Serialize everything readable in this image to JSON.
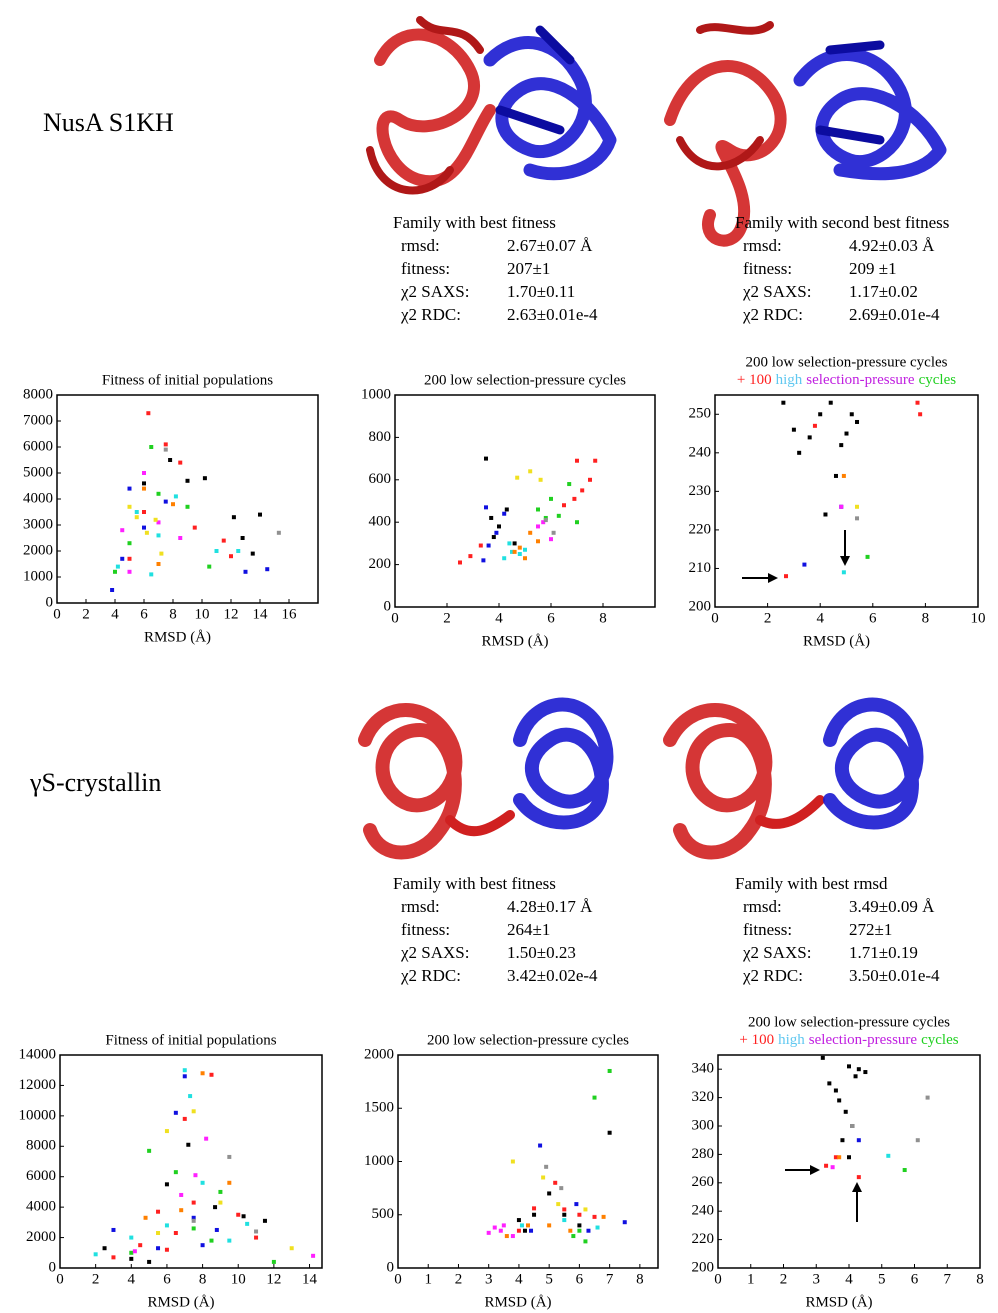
{
  "panels": [
    {
      "label": "NusA S1KH",
      "families": [
        {
          "title": "Family with best fitness",
          "rows": [
            [
              "rmsd:",
              "2.67±0.07 Å"
            ],
            [
              "fitness:",
              "207±1"
            ],
            [
              "χ2 SAXS:",
              "1.70±0.11"
            ],
            [
              "χ2 RDC:",
              "2.63±0.01e-4"
            ]
          ]
        },
        {
          "title": "Family with second best fitness",
          "rows": [
            [
              "rmsd:",
              "4.92±0.03 Å"
            ],
            [
              "fitness:",
              "209 ±1"
            ],
            [
              "χ2 SAXS:",
              "1.17±0.02"
            ],
            [
              "χ2 RDC:",
              "2.69±0.01e-4"
            ]
          ]
        }
      ]
    },
    {
      "label": "γS-crystallin",
      "families": [
        {
          "title": "Family with best fitness",
          "rows": [
            [
              "rmsd:",
              "4.28±0.17 Å"
            ],
            [
              "fitness:",
              "264±1"
            ],
            [
              "χ2 SAXS:",
              "1.50±0.23"
            ],
            [
              "χ2 RDC:",
              "3.42±0.02e-4"
            ]
          ]
        },
        {
          "title": "Family with best rmsd",
          "rows": [
            [
              "rmsd:",
              "3.49±0.09 Å"
            ],
            [
              "fitness:",
              "272±1"
            ],
            [
              "χ2 SAXS:",
              "1.71±0.19"
            ],
            [
              "χ2 RDC:",
              "3.50±0.01e-4"
            ]
          ]
        }
      ]
    }
  ],
  "chart_data": [
    {
      "type": "scatter",
      "title": "Fitness of initial populations",
      "xlabel": "RMSD (Å)",
      "xlim": [
        0,
        18
      ],
      "xticks": [
        0,
        2,
        4,
        6,
        8,
        10,
        12,
        14,
        16
      ],
      "ylim": [
        0,
        8000
      ],
      "yticks": [
        0,
        1000,
        2000,
        3000,
        4000,
        5000,
        6000,
        7000,
        8000
      ],
      "series": [
        {
          "color": "#ff2020",
          "x": [
            6.3,
            7.5,
            8.5,
            9.5,
            11.5,
            12,
            6,
            5
          ],
          "y": [
            7300,
            6100,
            5400,
            2900,
            2400,
            1800,
            3500,
            1700
          ]
        },
        {
          "color": "#20d020",
          "x": [
            6.5,
            7,
            9,
            10.5,
            5,
            4
          ],
          "y": [
            6000,
            4200,
            3700,
            1400,
            2300,
            1200
          ]
        },
        {
          "color": "#1010e0",
          "x": [
            3.8,
            5,
            6,
            7.5,
            13,
            14.5,
            4.5
          ],
          "y": [
            500,
            4400,
            2900,
            3900,
            1200,
            1300,
            1700
          ]
        },
        {
          "color": "#000000",
          "x": [
            6,
            7.8,
            9,
            10.2,
            12.2,
            12.8,
            14,
            13.5
          ],
          "y": [
            4600,
            5500,
            4700,
            4800,
            3300,
            2500,
            3400,
            1900
          ]
        },
        {
          "color": "#20e0e0",
          "x": [
            4.2,
            5.5,
            7,
            8.2,
            11,
            12.5,
            6.5
          ],
          "y": [
            1400,
            3500,
            2600,
            4100,
            2000,
            2000,
            1100
          ]
        },
        {
          "color": "#ff20ff",
          "x": [
            5,
            6,
            4.5,
            7,
            8.5
          ],
          "y": [
            1200,
            5000,
            2800,
            3100,
            2500
          ]
        },
        {
          "color": "#f0e020",
          "x": [
            5.5,
            6.2,
            6.8,
            7.2,
            5
          ],
          "y": [
            3300,
            2700,
            3200,
            1900,
            3700
          ]
        },
        {
          "color": "#ff8000",
          "x": [
            6,
            7,
            8
          ],
          "y": [
            4400,
            1500,
            3800
          ]
        },
        {
          "color": "#909090",
          "x": [
            7.5,
            15.3
          ],
          "y": [
            5900,
            2700
          ]
        }
      ]
    },
    {
      "type": "scatter",
      "title": "200 low selection-pressure cycles",
      "xlabel": "RMSD (Å)",
      "xlim": [
        0,
        10
      ],
      "xticks": [
        0,
        2,
        4,
        6,
        8
      ],
      "ylim": [
        0,
        1000
      ],
      "yticks": [
        0,
        200,
        400,
        600,
        800,
        1000
      ],
      "series": [
        {
          "color": "#ff2020",
          "x": [
            2.5,
            2.9,
            3.3,
            6.5,
            6.9,
            7.2,
            7.5,
            7,
            7.7
          ],
          "y": [
            210,
            240,
            290,
            480,
            510,
            550,
            600,
            690,
            690
          ]
        },
        {
          "color": "#000000",
          "x": [
            3.5,
            3.7,
            4,
            4.3,
            4.6,
            3.8
          ],
          "y": [
            700,
            420,
            380,
            460,
            300,
            330
          ]
        },
        {
          "color": "#1010e0",
          "x": [
            3.4,
            3.6,
            3.9,
            3.5,
            4.2
          ],
          "y": [
            220,
            290,
            350,
            470,
            440
          ]
        },
        {
          "color": "#20e0e0",
          "x": [
            4.2,
            4.5,
            4.8,
            5,
            4.4
          ],
          "y": [
            230,
            260,
            250,
            270,
            300
          ]
        },
        {
          "color": "#20d020",
          "x": [
            5.5,
            6,
            6.3,
            6.7,
            7,
            5.8
          ],
          "y": [
            460,
            510,
            430,
            580,
            400,
            420
          ]
        },
        {
          "color": "#ff8000",
          "x": [
            4.8,
            5.2,
            5.5,
            5,
            4.6
          ],
          "y": [
            280,
            350,
            310,
            230,
            260
          ]
        },
        {
          "color": "#f0e020",
          "x": [
            5.2,
            5.6,
            4.7
          ],
          "y": [
            640,
            600,
            610
          ]
        },
        {
          "color": "#ff20ff",
          "x": [
            5.5,
            5.7,
            6
          ],
          "y": [
            380,
            400,
            320
          ]
        },
        {
          "color": "#909090",
          "x": [
            5.8,
            6.1
          ],
          "y": [
            410,
            350
          ]
        }
      ]
    },
    {
      "type": "scatter",
      "title": "200 low selection-pressure cycles",
      "subtitle": [
        {
          "text": "+ 100",
          "color": "#ff2020"
        },
        {
          "text": "high",
          "color": "#60c8f0"
        },
        {
          "text": "selection-pressure",
          "color": "#c020e0"
        },
        {
          "text": "cycles",
          "color": "#20d020"
        }
      ],
      "xlabel": "RMSD (Å)",
      "xlim": [
        0,
        10
      ],
      "xticks": [
        0,
        2,
        4,
        6,
        8,
        10
      ],
      "ylim": [
        200,
        255
      ],
      "yticks": [
        200,
        210,
        220,
        230,
        240,
        250
      ],
      "series": [
        {
          "color": "#000000",
          "x": [
            2.6,
            3,
            3.2,
            3.6,
            4,
            4.2,
            4.4,
            4.6,
            5,
            5.2,
            4.8,
            5.4
          ],
          "y": [
            253,
            246,
            240,
            244,
            250,
            224,
            253,
            234,
            245,
            250,
            242,
            248
          ]
        },
        {
          "color": "#ff2020",
          "x": [
            2.7,
            3.8,
            7.7,
            7.8
          ],
          "y": [
            208,
            247,
            253,
            250
          ]
        },
        {
          "color": "#1010e0",
          "x": [
            3.4,
            4.8
          ],
          "y": [
            211,
            226
          ]
        },
        {
          "color": "#20e0e0",
          "x": [
            4.9
          ],
          "y": [
            209
          ]
        },
        {
          "color": "#20d020",
          "x": [
            5.8
          ],
          "y": [
            213
          ]
        },
        {
          "color": "#ff8000",
          "x": [
            4.9
          ],
          "y": [
            234
          ]
        },
        {
          "color": "#ff20ff",
          "x": [
            4.8
          ],
          "y": [
            226
          ]
        },
        {
          "color": "#f0e020",
          "x": [
            5.4
          ],
          "y": [
            226
          ]
        },
        {
          "color": "#909090",
          "x": [
            5.4
          ],
          "y": [
            223
          ]
        }
      ]
    },
    {
      "type": "scatter",
      "title": "Fitness of initial populations",
      "xlabel": "RMSD (Å)",
      "xlim": [
        0,
        14.7
      ],
      "xticks": [
        0,
        2,
        4,
        6,
        8,
        10,
        12,
        14
      ],
      "ylim": [
        0,
        14000
      ],
      "yticks": [
        0,
        2000,
        4000,
        6000,
        8000,
        10000,
        12000,
        14000
      ],
      "series": [
        {
          "color": "#ff2020",
          "x": [
            3,
            4.5,
            5.5,
            6,
            7,
            7.5,
            8.5,
            10,
            11,
            6.5
          ],
          "y": [
            700,
            1500,
            3700,
            1200,
            9800,
            4300,
            12700,
            3500,
            2000,
            2300
          ]
        },
        {
          "color": "#20d020",
          "x": [
            4,
            5,
            6.5,
            7.5,
            8.5,
            9,
            12
          ],
          "y": [
            1000,
            7700,
            6300,
            2600,
            1800,
            5000,
            400
          ]
        },
        {
          "color": "#1010e0",
          "x": [
            3,
            5.5,
            6.5,
            7,
            7.5,
            8,
            8.8
          ],
          "y": [
            2500,
            1300,
            10200,
            12600,
            3300,
            1500,
            2500
          ]
        },
        {
          "color": "#000000",
          "x": [
            2.5,
            4,
            6,
            7.2,
            8.7,
            10.3,
            11.5,
            5
          ],
          "y": [
            1300,
            600,
            5500,
            8100,
            4000,
            3400,
            3100,
            400
          ]
        },
        {
          "color": "#20e0e0",
          "x": [
            2,
            4,
            6,
            7.3,
            8,
            9.5,
            10.5,
            7
          ],
          "y": [
            900,
            2000,
            2800,
            11300,
            5600,
            1800,
            2900,
            13000
          ]
        },
        {
          "color": "#ff20ff",
          "x": [
            4.2,
            6.8,
            7.6,
            14.2,
            8.2
          ],
          "y": [
            1100,
            4800,
            6100,
            800,
            8500
          ]
        },
        {
          "color": "#f0e020",
          "x": [
            6,
            7.5,
            9,
            13,
            5.5
          ],
          "y": [
            9000,
            10300,
            4300,
            1300,
            2300
          ]
        },
        {
          "color": "#ff8000",
          "x": [
            6.8,
            8,
            9.5,
            4.8
          ],
          "y": [
            3800,
            12800,
            5600,
            3300
          ]
        },
        {
          "color": "#909090",
          "x": [
            7.5,
            9.5,
            11
          ],
          "y": [
            3100,
            7300,
            2400
          ]
        }
      ]
    },
    {
      "type": "scatter",
      "title": "200 low selection-pressure cycles",
      "xlabel": "RMSD (Å)",
      "xlim": [
        0,
        8.6
      ],
      "xticks": [
        0,
        1,
        2,
        3,
        4,
        5,
        6,
        7,
        8
      ],
      "ylim": [
        0,
        2000
      ],
      "yticks": [
        0,
        500,
        1000,
        1500,
        2000
      ],
      "series": [
        {
          "color": "#ff20ff",
          "x": [
            3,
            3.2,
            3.5,
            3.8,
            3.4
          ],
          "y": [
            330,
            380,
            400,
            300,
            350
          ]
        },
        {
          "color": "#000000",
          "x": [
            4,
            4.5,
            5,
            5.5,
            6,
            7,
            4.2
          ],
          "y": [
            450,
            500,
            700,
            500,
            400,
            1270,
            350
          ]
        },
        {
          "color": "#1010e0",
          "x": [
            4.4,
            4.7,
            6.3,
            5.9,
            7.5
          ],
          "y": [
            350,
            1150,
            350,
            600,
            430
          ]
        },
        {
          "color": "#20d020",
          "x": [
            5.8,
            6.5,
            7,
            6,
            6.2
          ],
          "y": [
            300,
            1600,
            1850,
            350,
            250
          ]
        },
        {
          "color": "#ff2020",
          "x": [
            4,
            4.5,
            5.2,
            5.5,
            6,
            6.5
          ],
          "y": [
            350,
            560,
            800,
            550,
            500,
            480
          ]
        },
        {
          "color": "#ff8000",
          "x": [
            3.6,
            4.3,
            5,
            5.7,
            6.8
          ],
          "y": [
            300,
            400,
            400,
            350,
            480
          ]
        },
        {
          "color": "#f0e020",
          "x": [
            3.8,
            4.8,
            5.3,
            6.2
          ],
          "y": [
            1000,
            850,
            600,
            550
          ]
        },
        {
          "color": "#20e0e0",
          "x": [
            4.1,
            5.5,
            6.6
          ],
          "y": [
            400,
            450,
            380
          ]
        },
        {
          "color": "#909090",
          "x": [
            4.9,
            5.4
          ],
          "y": [
            950,
            750
          ]
        }
      ]
    },
    {
      "type": "scatter",
      "title": "200 low selection-pressure cycles",
      "subtitle": [
        {
          "text": "+ 100",
          "color": "#ff2020"
        },
        {
          "text": "high",
          "color": "#60c8f0"
        },
        {
          "text": "selection-pressure",
          "color": "#c020e0"
        },
        {
          "text": "cycles",
          "color": "#20d020"
        }
      ],
      "xlabel": "RMSD (Å)",
      "xlim": [
        0,
        8
      ],
      "xticks": [
        0,
        1,
        2,
        3,
        4,
        5,
        6,
        7,
        8
      ],
      "ylim": [
        200,
        350
      ],
      "yticks": [
        200,
        220,
        240,
        260,
        280,
        300,
        320,
        340
      ],
      "series": [
        {
          "color": "#000000",
          "x": [
            3.2,
            3.4,
            3.7,
            3.9,
            4,
            4.1,
            4.3,
            4.5,
            3.8,
            4.2,
            3.6,
            4
          ],
          "y": [
            348,
            330,
            318,
            310,
            342,
            300,
            340,
            338,
            290,
            335,
            325,
            278
          ]
        },
        {
          "color": "#ff2020",
          "x": [
            3.3,
            3.6,
            4.3
          ],
          "y": [
            272,
            278,
            264
          ]
        },
        {
          "color": "#ff20ff",
          "x": [
            3.5
          ],
          "y": [
            271
          ]
        },
        {
          "color": "#1010e0",
          "x": [
            4.3
          ],
          "y": [
            290
          ]
        },
        {
          "color": "#20e0e0",
          "x": [
            5.2
          ],
          "y": [
            279
          ]
        },
        {
          "color": "#20d020",
          "x": [
            5.7
          ],
          "y": [
            269
          ]
        },
        {
          "color": "#909090",
          "x": [
            4.1,
            6.1,
            6.4
          ],
          "y": [
            300,
            290,
            320
          ]
        },
        {
          "color": "#ff8000",
          "x": [
            3.7
          ],
          "y": [
            278
          ]
        }
      ]
    }
  ]
}
